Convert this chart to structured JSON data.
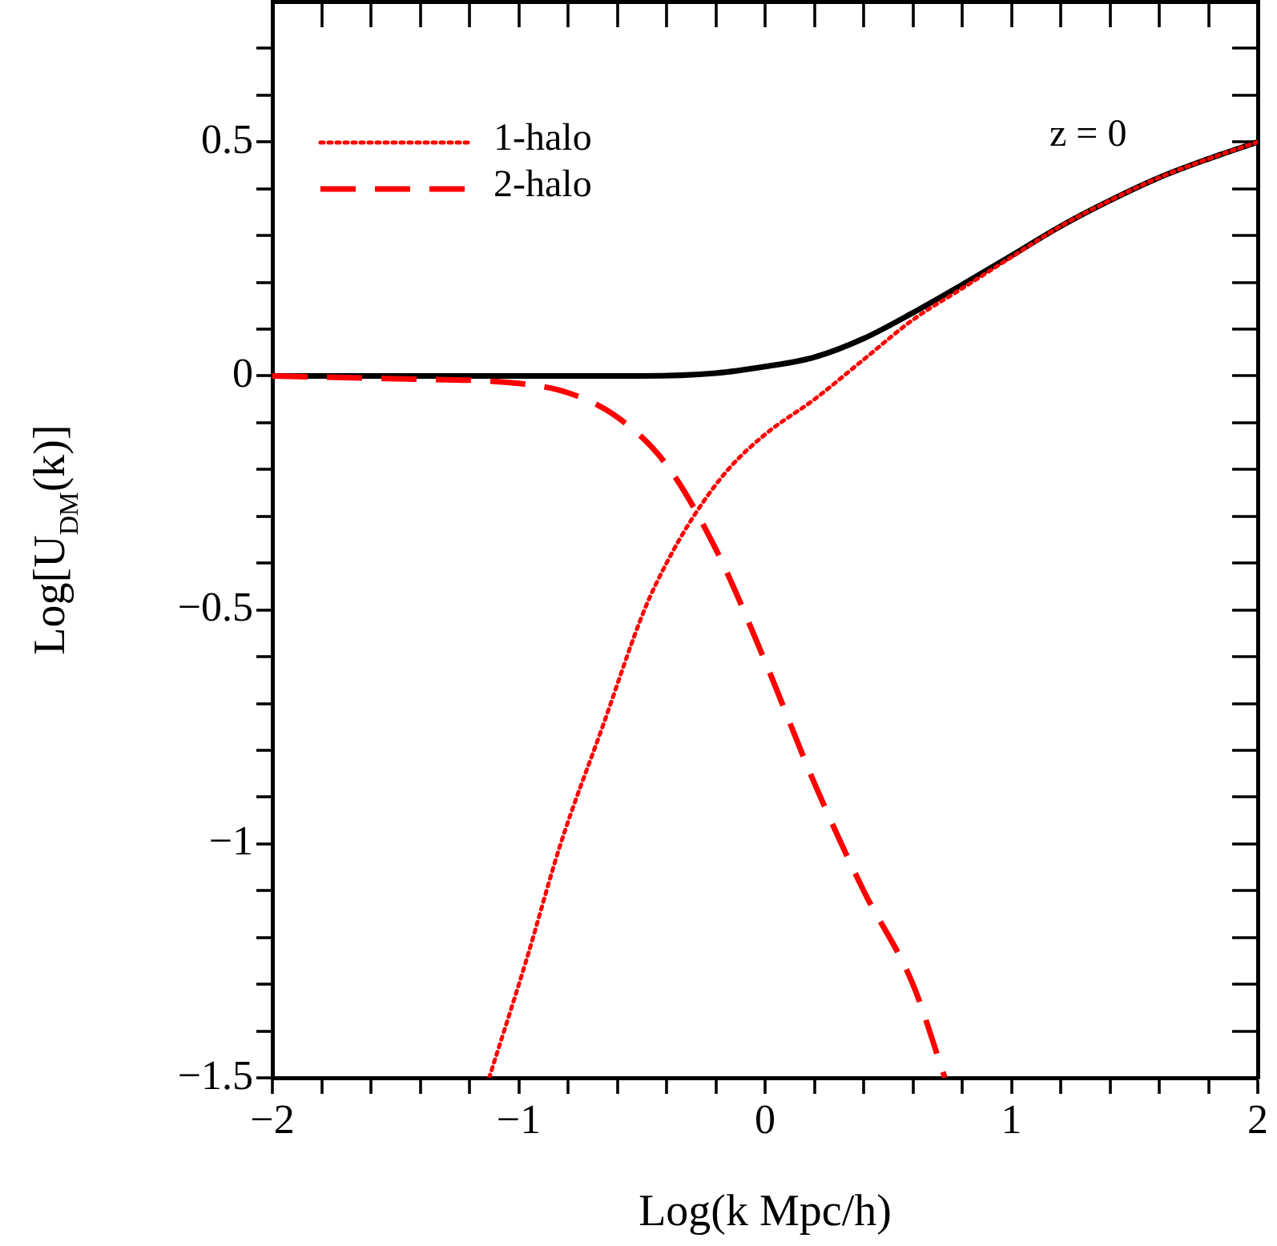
{
  "chart_data": {
    "type": "line",
    "xlabel": "Log(k Mpc/h)",
    "ylabel": "Log[U$_{DM}$(k)]",
    "annotations": [
      "z = 0"
    ],
    "xlim": [
      -2,
      2
    ],
    "ylim": [
      -1.5,
      0.8
    ],
    "xticks": [
      -2,
      {
        "value": -1.8,
        "label": null
      },
      {
        "value": -1.6,
        "label": null
      },
      {
        "value": -1.4,
        "label": null
      },
      {
        "value": -1.2,
        "label": null
      },
      -1,
      {
        "value": -0.8,
        "label": null
      },
      {
        "value": -0.6,
        "label": null
      },
      {
        "value": -0.4,
        "label": null
      },
      {
        "value": -0.2,
        "label": null
      },
      0,
      {
        "value": 0.2,
        "label": null
      },
      {
        "value": 0.4,
        "label": null
      },
      {
        "value": 0.6,
        "label": null
      },
      {
        "value": 0.8,
        "label": null
      },
      1,
      {
        "value": 1.2,
        "label": null
      },
      {
        "value": 1.4,
        "label": null
      },
      {
        "value": 1.6,
        "label": null
      },
      {
        "value": 1.8,
        "label": null
      },
      2
    ],
    "yticks": [
      -1.5,
      {
        "value": -1.4,
        "label": null
      },
      {
        "value": -1.3,
        "label": null
      },
      {
        "value": -1.2,
        "label": null
      },
      {
        "value": -1.1,
        "label": null
      },
      -1,
      {
        "value": -0.9,
        "label": null
      },
      {
        "value": -0.8,
        "label": null
      },
      {
        "value": -0.7,
        "label": null
      },
      {
        "value": -0.6,
        "label": null
      },
      -0.5,
      {
        "value": -0.4,
        "label": null
      },
      {
        "value": -0.3,
        "label": null
      },
      {
        "value": -0.2,
        "label": null
      },
      {
        "value": -0.1,
        "label": null
      },
      0,
      {
        "value": 0.1,
        "label": null
      },
      {
        "value": 0.2,
        "label": null
      },
      {
        "value": 0.3,
        "label": null
      },
      {
        "value": 0.4,
        "label": null
      },
      0.5,
      {
        "value": 0.6,
        "label": null
      },
      {
        "value": 0.7,
        "label": null
      }
    ],
    "grid": false,
    "legend": "top left",
    "marker": "none",
    "series": [
      {
        "name": "1-halo",
        "color": "#ff0000",
        "line_style": "dotted",
        "x": [
          -1.12,
          -0.97,
          -0.83,
          -0.66,
          -0.49,
          -0.4,
          -0.29,
          -0.15,
          0,
          0.2,
          0.4,
          0.6,
          0.8,
          1.0,
          1.2,
          1.4,
          1.6,
          1.8,
          2.0
        ],
        "values": [
          -1.5,
          -1.25,
          -1.0,
          -0.75,
          -0.5,
          -0.4,
          -0.3,
          -0.2,
          -0.125,
          -0.05,
          0.035,
          0.12,
          0.187,
          0.254,
          0.32,
          0.375,
          0.424,
          0.464,
          0.5
        ]
      },
      {
        "name": "2-halo",
        "color": "#ff0000",
        "line_style": "dashed",
        "x": [
          -2,
          -1.5,
          -1,
          -0.8,
          -0.6,
          -0.4,
          -0.2,
          0,
          0.2,
          0.4,
          0.6,
          0.73
        ],
        "values": [
          0,
          -0.006,
          -0.016,
          -0.036,
          -0.088,
          -0.19,
          -0.37,
          -0.61,
          -0.87,
          -1.1,
          -1.3,
          -1.5
        ]
      },
      {
        "color": "#000000",
        "line_style": "solid",
        "x": [
          -2,
          -1.5,
          -1,
          -0.5,
          -0.2,
          0,
          0.2,
          0.4,
          0.6,
          0.8,
          1.0,
          1.2,
          1.4,
          1.6,
          1.8,
          2.0
        ],
        "values": [
          0,
          0,
          0,
          0,
          0.006,
          0.02,
          0.04,
          0.08,
          0.135,
          0.195,
          0.257,
          0.32,
          0.375,
          0.424,
          0.464,
          0.5
        ]
      }
    ]
  }
}
